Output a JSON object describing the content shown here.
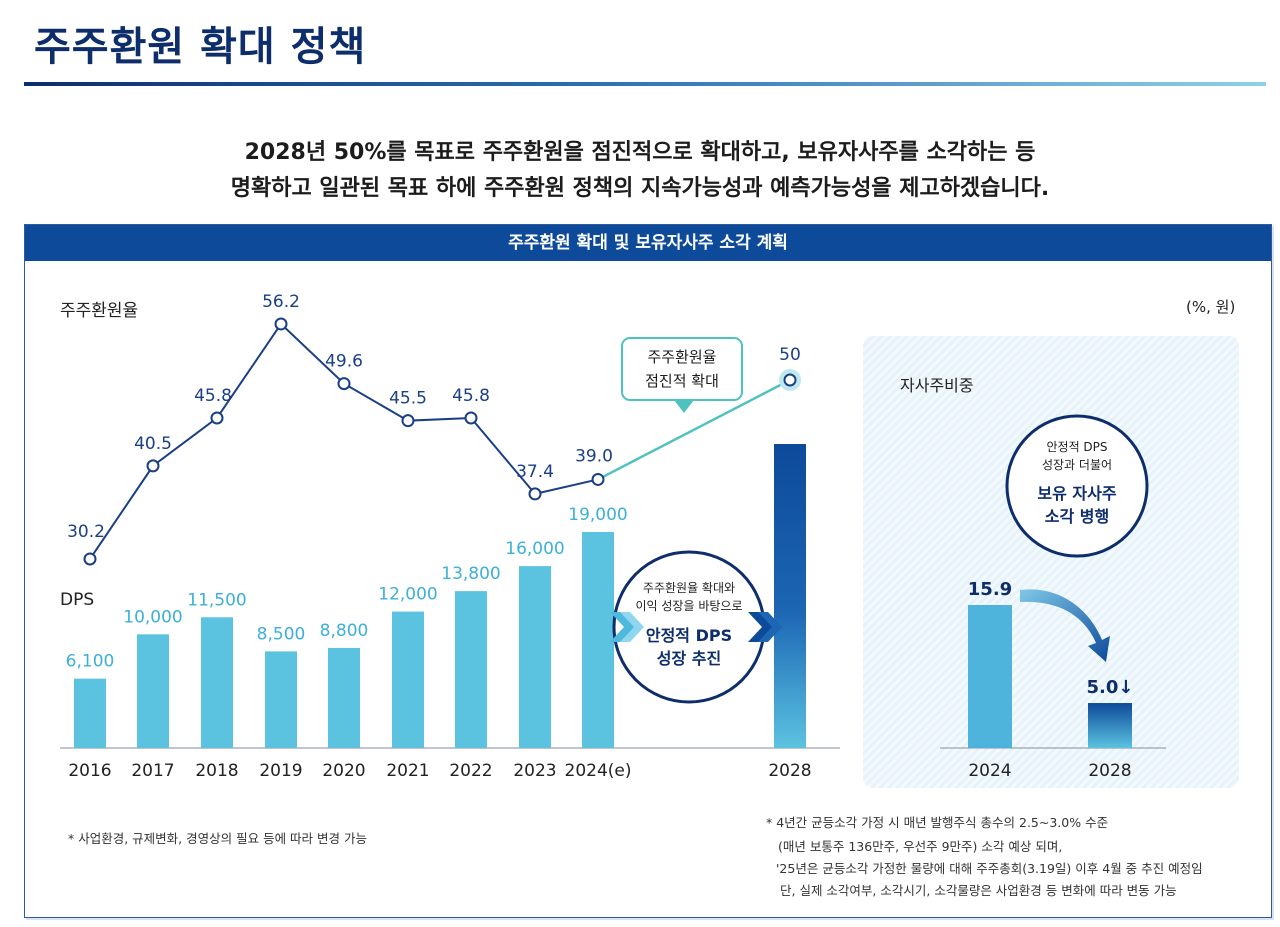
{
  "page": {
    "title": "주주환원 확대 정책",
    "headline_1": "2028년 50%를 목표로 주주환원을 점진적으로 확대하고, 보유자사주를 소각하는 등",
    "headline_2": "명확하고 일관된 목표 하에 주주환원 정책의 지속가능성과 예측가능성을 제고하겠습니다.",
    "panel_title": "주주환원 확대 및 보유자사주 소각 계획",
    "unit_label": "(%, 원)",
    "payout_label": "주주환원율",
    "dps_label": "DPS",
    "callout_line1": "주주환원율",
    "callout_line2": "점진적 확대",
    "circle_small_1": "주주환원율 확대와",
    "circle_small_2": "이익 성장을 바탕으로",
    "circle_big_1": "안정적 DPS",
    "circle_big_2": "성장 추진",
    "treasury_label": "자사주비중",
    "treasury_small_1": "안정적 DPS",
    "treasury_small_2": "성장과 더불어",
    "treasury_big_1": "보유 자사주",
    "treasury_big_2": "소각 병행",
    "note_left": "* 사업환경, 규제변화, 경영상의 필요 등에 따라 변경 가능",
    "note_right_1": "* 4년간 균등소각 가정 시 매년 발행주식 총수의 2.5~3.0% 수준",
    "note_right_2": "(매년 보통주 136만주, 우선주 9만주) 소각 예상 되며,",
    "note_right_3": "'25년은 균등소각 가정한 물량에 대해 주주총회(3.19일) 이후 4월 중 추진 예정임",
    "note_right_4": "단, 실제 소각여부, 소각시기, 소각물량은 사업환경 등 변화에 따라 변동 가능"
  },
  "colors": {
    "navy": "#0d2d6b",
    "header_blue": "#0d4a9a",
    "line_navy": "#1a3f86",
    "line_teal": "#4ec2bf",
    "bar_cyan": "#5bc3e0",
    "bar_dark": "#0d4a9a",
    "label_cyan": "#3cb0d8"
  },
  "chart_data": [
    {
      "type": "line",
      "title": "주주환원율",
      "x": [
        "2016",
        "2017",
        "2018",
        "2019",
        "2020",
        "2021",
        "2022",
        "2023",
        "2024(e)",
        "2028"
      ],
      "y": [
        30.2,
        40.5,
        45.8,
        56.2,
        49.6,
        45.5,
        45.8,
        37.4,
        39.0,
        50
      ],
      "value_labels": [
        "30.2",
        "40.5",
        "45.8",
        "56.2",
        "49.6",
        "45.5",
        "45.8",
        "37.4",
        "39.0",
        "50"
      ]
    },
    {
      "type": "bar",
      "title": "DPS",
      "categories": [
        "2016",
        "2017",
        "2018",
        "2019",
        "2020",
        "2021",
        "2022",
        "2023",
        "2024(e)",
        "2028"
      ],
      "values": [
        6100,
        10000,
        11500,
        8500,
        8800,
        12000,
        13800,
        16000,
        19000,
        null
      ],
      "value_labels": [
        "6,100",
        "10,000",
        "11,500",
        "8,500",
        "8,800",
        "12,000",
        "13,800",
        "16,000",
        "19,000",
        ""
      ]
    },
    {
      "type": "bar",
      "title": "자사주비중",
      "categories": [
        "2024",
        "2028"
      ],
      "values": [
        15.9,
        5.0
      ],
      "value_labels": [
        "15.9",
        "5.0↓"
      ]
    }
  ]
}
